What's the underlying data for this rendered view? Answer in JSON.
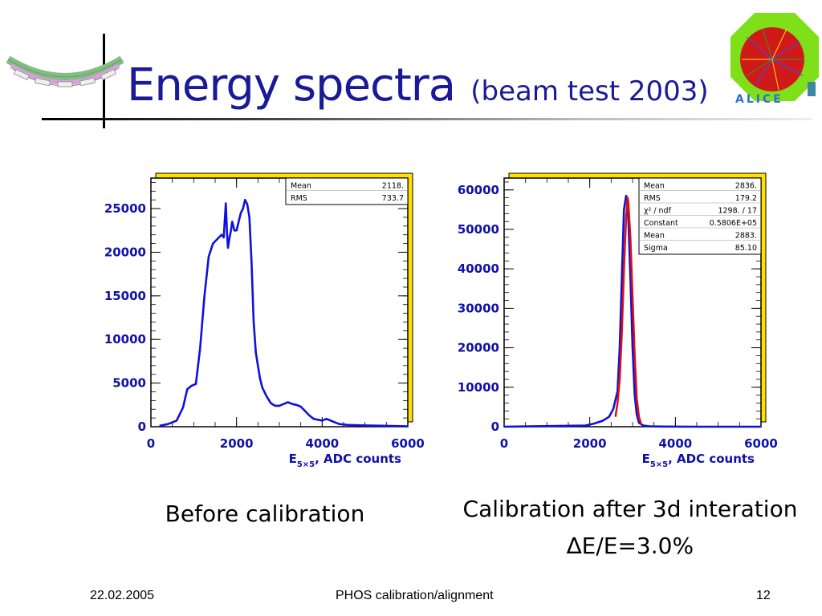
{
  "slide": {
    "title": "Energy spectra",
    "subtitle": "(beam test 2003)",
    "captions": {
      "left": "Before calibration",
      "right_line1": "Calibration after 3d interation",
      "right_line2": "∆E/E=3.0%"
    },
    "footer": {
      "date": "22.02.2005",
      "center": "PHOS calibration/alignment",
      "page": "12"
    },
    "logo_text": "ALICE"
  },
  "chart_data": [
    {
      "type": "line",
      "xlabel": "E5×5, ADC counts",
      "xlim": [
        0,
        6000
      ],
      "ylim": [
        0,
        28500
      ],
      "xticks": [
        "0",
        "2000",
        "4000",
        "6000"
      ],
      "yticks": [
        "0",
        "5000",
        "10000",
        "15000",
        "20000",
        "25000"
      ],
      "ytick_values": [
        0,
        5000,
        10000,
        15000,
        20000,
        25000
      ],
      "stats": [
        [
          "Mean",
          "2118."
        ],
        [
          "RMS",
          "733.7"
        ]
      ],
      "colors": {
        "line": "#1010dd",
        "frame_shadow": "#ffe000"
      },
      "series": [
        {
          "x": [
            200,
            400,
            600,
            750,
            850,
            950,
            1050,
            1150,
            1250,
            1350,
            1450,
            1550,
            1650,
            1700,
            1750,
            1780,
            1800,
            1830,
            1870,
            1900,
            1950,
            2000,
            2050,
            2100,
            2150,
            2200,
            2250,
            2300,
            2350,
            2400,
            2450,
            2500,
            2550,
            2600,
            2700,
            2800,
            2900,
            3000,
            3100,
            3200,
            3300,
            3400,
            3500,
            3600,
            3700,
            3800,
            3900,
            4000,
            4100,
            4200,
            4300,
            4400,
            4600,
            5000,
            5500,
            6000
          ],
          "y": [
            100,
            300,
            700,
            2200,
            4300,
            4700,
            4900,
            9000,
            15000,
            19500,
            21000,
            21500,
            22000,
            21700,
            25600,
            22000,
            20500,
            21500,
            22500,
            23500,
            22500,
            22500,
            23500,
            24500,
            25000,
            26000,
            25500,
            24000,
            19000,
            12000,
            8500,
            7000,
            5500,
            4500,
            3500,
            2700,
            2400,
            2400,
            2600,
            2800,
            2600,
            2500,
            2300,
            1800,
            1300,
            900,
            800,
            700,
            900,
            700,
            500,
            300,
            200,
            150,
            100,
            50
          ]
        }
      ]
    },
    {
      "type": "line",
      "xlabel": "E5×5, ADC counts",
      "xlim": [
        0,
        6000
      ],
      "ylim": [
        0,
        63000
      ],
      "xticks": [
        "0",
        "2000",
        "4000",
        "6000"
      ],
      "yticks": [
        "0",
        "10000",
        "20000",
        "30000",
        "40000",
        "50000",
        "60000"
      ],
      "ytick_values": [
        0,
        10000,
        20000,
        30000,
        40000,
        50000,
        60000
      ],
      "stats": [
        [
          "Mean",
          "2836."
        ],
        [
          "RMS",
          "179.2"
        ],
        [
          "χ² / ndf",
          "1298. / 17"
        ],
        [
          "Constant",
          "0.5806E+05"
        ],
        [
          "Mean",
          "2883."
        ],
        [
          "Sigma",
          "85.10"
        ]
      ],
      "colors": {
        "line": "#1010dd",
        "fit": "#dd1010",
        "frame_shadow": "#ffe000"
      },
      "series": [
        {
          "x": [
            0,
            1900,
            2100,
            2300,
            2450,
            2550,
            2650,
            2700,
            2750,
            2800,
            2850,
            2880,
            2900,
            2950,
            3000,
            3050,
            3100,
            3150,
            3250,
            3400,
            3700,
            4500,
            6000
          ],
          "y": [
            0,
            300,
            800,
            1500,
            2500,
            4500,
            9000,
            20000,
            38000,
            55000,
            58500,
            57000,
            53000,
            38000,
            20000,
            8000,
            3000,
            1000,
            300,
            100,
            50,
            0,
            0
          ]
        },
        {
          "name": "fit",
          "x": [
            2600,
            2650,
            2700,
            2750,
            2800,
            2850,
            2883,
            2900,
            2950,
            3000,
            3050,
            3100,
            3150,
            3200
          ],
          "y": [
            2500,
            6000,
            12000,
            24000,
            40000,
            53000,
            58060,
            57000,
            48000,
            33000,
            18000,
            7000,
            2500,
            700
          ]
        }
      ]
    }
  ]
}
